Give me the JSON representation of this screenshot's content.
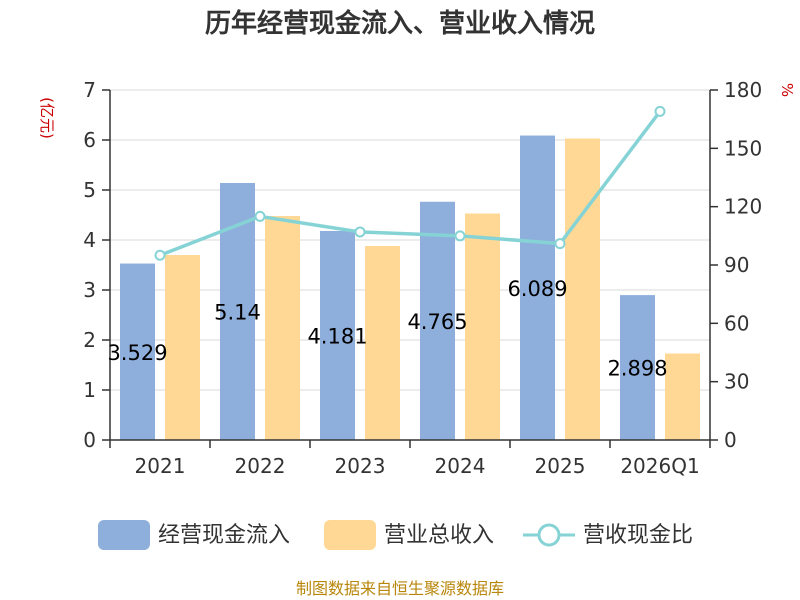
{
  "chart_data": {
    "type": "bar",
    "title": "历年经营现金流入、营业收入情况",
    "categories": [
      "2021",
      "2022",
      "2023",
      "2024",
      "2025",
      "2026Q1"
    ],
    "series": [
      {
        "name": "经营现金流入",
        "type": "bar",
        "axis": "left",
        "color": "#8eaedb",
        "values": [
          3.529,
          5.14,
          4.181,
          4.765,
          6.089,
          2.898
        ],
        "labels": [
          "3.529",
          "5.14",
          "4.181",
          "4.765",
          "6.089",
          "2.898"
        ]
      },
      {
        "name": "营业总收入",
        "type": "bar",
        "axis": "left",
        "color": "#fed894",
        "values": [
          3.7,
          4.48,
          3.88,
          4.53,
          6.03,
          1.73
        ]
      },
      {
        "name": "营收现金比",
        "type": "line",
        "axis": "right",
        "color": "#86d3d6",
        "values": [
          95,
          115,
          107,
          105,
          101,
          169
        ]
      }
    ],
    "y_left": {
      "unit": "(亿元)",
      "min": 0,
      "max": 7,
      "ticks": [
        "0",
        "1",
        "2",
        "3",
        "4",
        "5",
        "6",
        "7"
      ]
    },
    "y_right": {
      "unit": "%",
      "min": 0,
      "max": 180,
      "ticks": [
        "0",
        "30",
        "60",
        "90",
        "120",
        "150",
        "180"
      ]
    },
    "grid": true,
    "legend_position": "bottom"
  },
  "source": "制图数据来自恒生聚源数据库"
}
